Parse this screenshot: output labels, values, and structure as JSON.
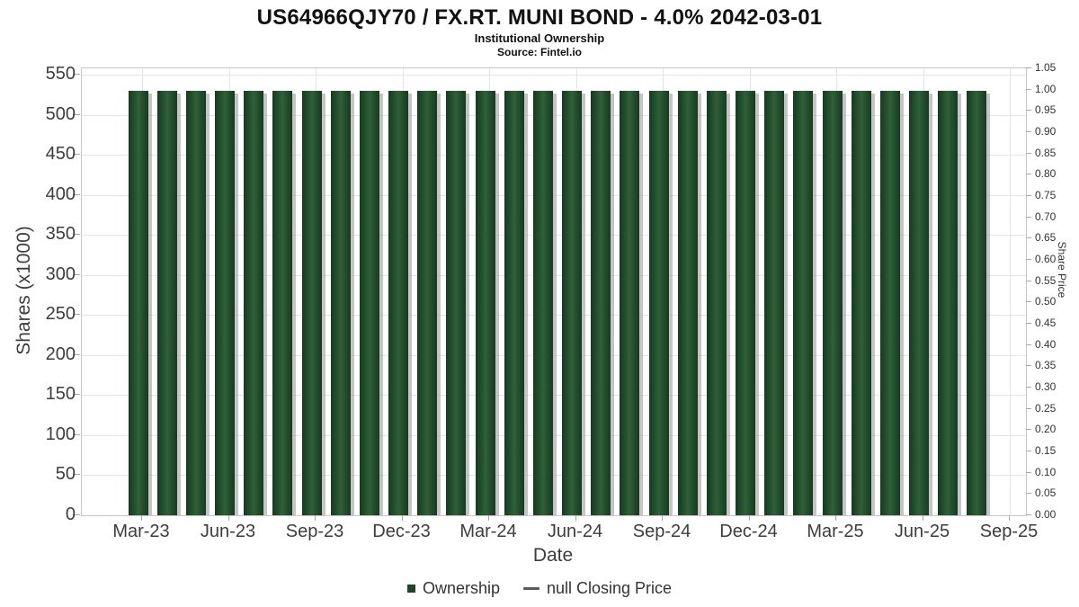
{
  "header": {
    "title": "US64966QJY70 / FX.RT. MUNI BOND - 4.0% 2042-03-01",
    "subtitle": "Institutional Ownership",
    "source": "Source: Fintel.io"
  },
  "chart_data": {
    "type": "bar",
    "title": "US64966QJY70 / FX.RT. MUNI BOND - 4.0% 2042-03-01",
    "subtitle": "Institutional Ownership",
    "source": "Source: Fintel.io",
    "xlabel": "Date",
    "ylabel_left": "Shares (x1000)",
    "ylabel_right": "Share Price",
    "x_ticks": [
      "Mar-23",
      "Jun-23",
      "Sep-23",
      "Dec-23",
      "Mar-24",
      "Jun-24",
      "Sep-24",
      "Dec-24",
      "Mar-25",
      "Jun-25",
      "Sep-25"
    ],
    "categories": [
      "Mar-23",
      "Apr-23",
      "May-23",
      "Jun-23",
      "Jul-23",
      "Aug-23",
      "Sep-23",
      "Oct-23",
      "Nov-23",
      "Dec-23",
      "Jan-24",
      "Feb-24",
      "Mar-24",
      "Apr-24",
      "May-24",
      "Jun-24",
      "Jul-24",
      "Aug-24",
      "Sep-24",
      "Oct-24",
      "Nov-24",
      "Dec-24",
      "Jan-25",
      "Feb-25",
      "Mar-25",
      "Apr-25",
      "May-25",
      "Jun-25",
      "Jul-25",
      "Aug-25"
    ],
    "series": [
      {
        "name": "Ownership",
        "type": "bar",
        "values": [
          530,
          530,
          530,
          530,
          530,
          530,
          530,
          530,
          530,
          530,
          530,
          530,
          530,
          530,
          530,
          530,
          530,
          530,
          530,
          530,
          530,
          530,
          530,
          530,
          530,
          530,
          530,
          530,
          530,
          530
        ]
      },
      {
        "name": "null Closing Price",
        "type": "line",
        "values": []
      }
    ],
    "left_axis": {
      "min": 0,
      "max": 550,
      "step": 50
    },
    "right_axis": {
      "min": 0.0,
      "max": 1.05,
      "step": 0.05
    },
    "grid": true,
    "legend_position": "bottom",
    "bar_color": "#1d4426",
    "line_color": "#5a5a5a"
  },
  "legend": {
    "items": [
      {
        "label": "Ownership",
        "type": "bar"
      },
      {
        "label": "null Closing Price",
        "type": "line"
      }
    ]
  }
}
